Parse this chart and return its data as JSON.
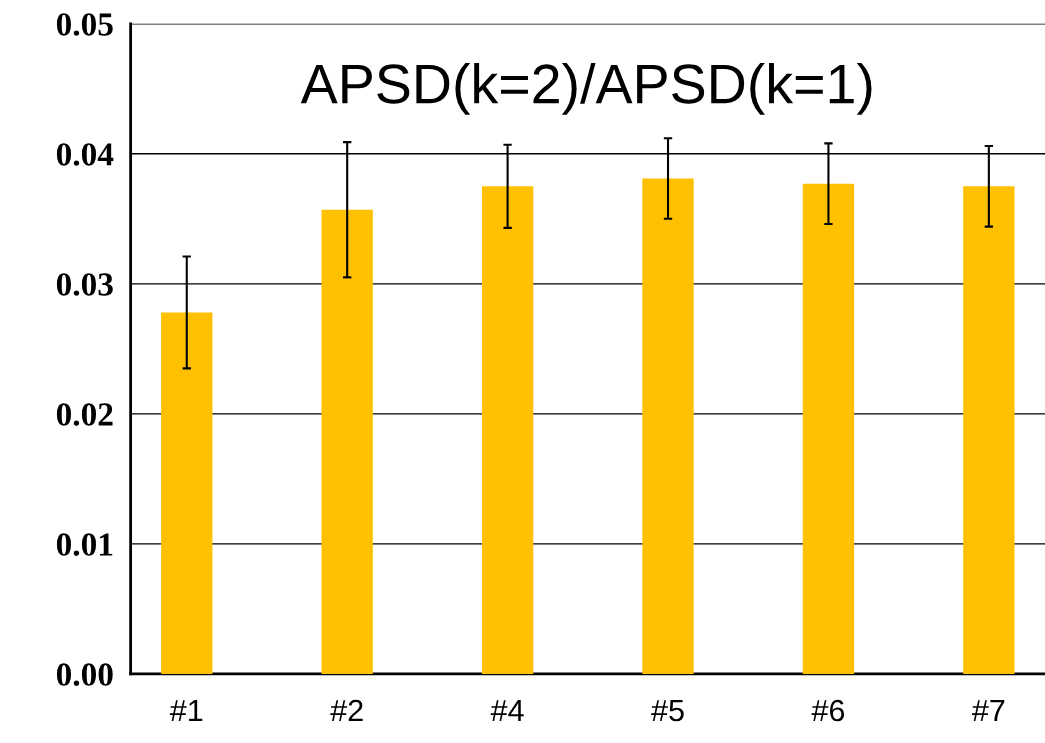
{
  "chart_data": {
    "type": "bar",
    "title": "APSD(k=2)/APSD(k=1)",
    "categories": [
      "#1",
      "#2",
      "#4",
      "#5",
      "#6",
      "#7"
    ],
    "values": [
      0.0278,
      0.0357,
      0.0375,
      0.0381,
      0.0377,
      0.0375
    ],
    "errors": [
      0.0043,
      0.0052,
      0.0032,
      0.0031,
      0.0031,
      0.0031
    ],
    "color": "#ffc000",
    "ylim": [
      0,
      0.05
    ],
    "yticks": [
      {
        "value": 0,
        "label": "0.00"
      },
      {
        "value": 0.01,
        "label": "0.01"
      },
      {
        "value": 0.02,
        "label": "0.02"
      },
      {
        "value": 0.03,
        "label": "0.03"
      },
      {
        "value": 0.04,
        "label": "0.04"
      },
      {
        "value": 0.05,
        "label": "0.05"
      }
    ],
    "grid": "y"
  }
}
